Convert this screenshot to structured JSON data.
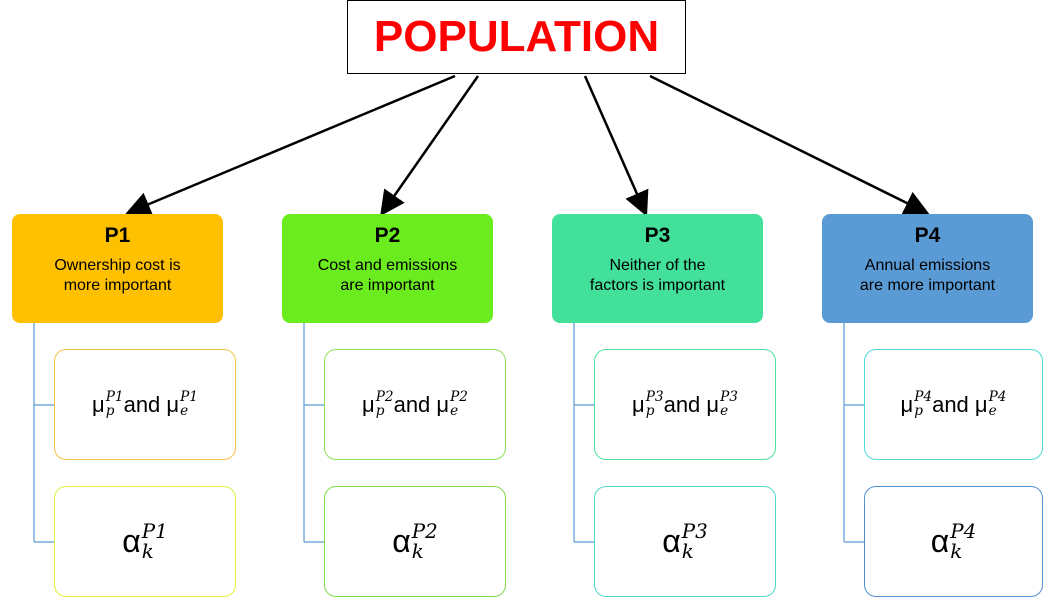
{
  "title": "POPULATION",
  "groups": [
    {
      "label": "P1",
      "description": [
        "Ownership cost is",
        "more important"
      ],
      "color": "#ffc000",
      "item_colors": [
        "#f5c242",
        "#e3ef3a"
      ],
      "params": [
        {
          "symbol": "μ",
          "sub": "p",
          "sup": "P1"
        },
        {
          "symbol": "μ",
          "sub": "e",
          "sup": "P1"
        }
      ],
      "connector": "and",
      "weight": {
        "symbol": "α",
        "sub": "k",
        "sup": "P1"
      }
    },
    {
      "label": "P2",
      "description": [
        "Cost and emissions",
        "are important"
      ],
      "color": "#6aec1f",
      "item_colors": [
        "#8ee05a",
        "#7fdc4a"
      ],
      "params": [
        {
          "symbol": "μ",
          "sub": "p",
          "sup": "P2"
        },
        {
          "symbol": "μ",
          "sub": "e",
          "sup": "P2"
        }
      ],
      "connector": "and",
      "weight": {
        "symbol": "α",
        "sub": "k",
        "sup": "P2"
      }
    },
    {
      "label": "P3",
      "description": [
        "Neither of the",
        "factors is important"
      ],
      "color": "#42e09a",
      "item_colors": [
        "#50e0a0",
        "#50d8c8"
      ],
      "params": [
        {
          "symbol": "μ",
          "sub": "p",
          "sup": "P3"
        },
        {
          "symbol": "μ",
          "sub": "e",
          "sup": "P3"
        }
      ],
      "connector": "and",
      "weight": {
        "symbol": "α",
        "sub": "k",
        "sup": "P3"
      }
    },
    {
      "label": "P4",
      "description": [
        "Annual emissions",
        "are more important"
      ],
      "color": "#5b9bd5",
      "item_colors": [
        "#50d8d8",
        "#4f8fd0"
      ],
      "params": [
        {
          "symbol": "μ",
          "sub": "p",
          "sup": "P4"
        },
        {
          "symbol": "μ",
          "sub": "e",
          "sup": "P4"
        }
      ],
      "connector": "and",
      "weight": {
        "symbol": "α",
        "sub": "k",
        "sup": "P4"
      }
    }
  ]
}
